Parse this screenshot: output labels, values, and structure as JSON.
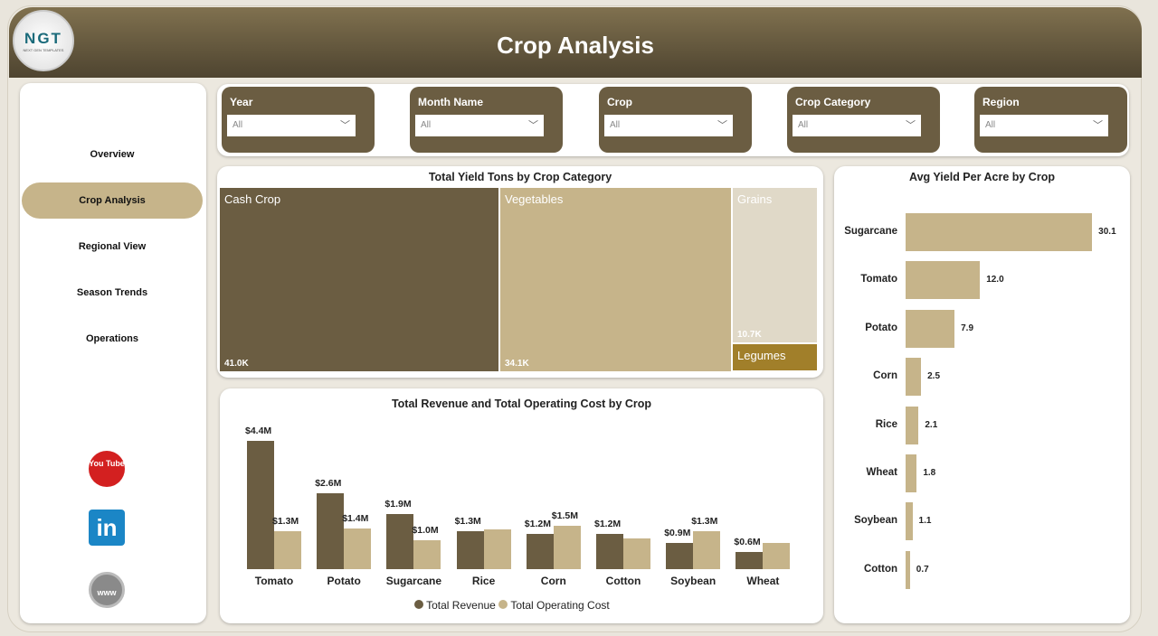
{
  "header": {
    "title": "Crop Analysis",
    "logo_text": "NGT",
    "logo_sub": "NEXT GEN TEMPLATES"
  },
  "sidebar": {
    "items": [
      {
        "label": "Overview"
      },
      {
        "label": "Crop Analysis",
        "active": true
      },
      {
        "label": "Regional View"
      },
      {
        "label": "Season Trends"
      },
      {
        "label": "Operations"
      }
    ],
    "social": [
      {
        "name": "youtube",
        "label": "You Tube"
      },
      {
        "name": "linkedin",
        "label": "in"
      },
      {
        "name": "website",
        "label": "www"
      }
    ]
  },
  "filters": [
    {
      "label": "Year",
      "value": "All"
    },
    {
      "label": "Month Name",
      "value": "All"
    },
    {
      "label": "Crop",
      "value": "All"
    },
    {
      "label": "Crop Category",
      "value": "All"
    },
    {
      "label": "Region",
      "value": "All"
    }
  ],
  "colors": {
    "dark": "#6b5d42",
    "tan": "#c6b48a",
    "light": "#e0d9c8",
    "legumes": "#a17f2a"
  },
  "chart_data": [
    {
      "type": "treemap",
      "title": "Total Yield Tons by Crop Category",
      "items": [
        {
          "name": "Cash Crop",
          "value": 41.0,
          "label": "41.0K"
        },
        {
          "name": "Vegetables",
          "value": 34.1,
          "label": "34.1K"
        },
        {
          "name": "Grains",
          "value": 10.7,
          "label": "10.7K"
        },
        {
          "name": "Legumes",
          "value": 2.0,
          "label": ""
        }
      ]
    },
    {
      "type": "bar",
      "title": "Total Revenue and Total Operating Cost by Crop",
      "categories": [
        "Tomato",
        "Potato",
        "Sugarcane",
        "Rice",
        "Corn",
        "Cotton",
        "Soybean",
        "Wheat"
      ],
      "series": [
        {
          "name": "Total Revenue",
          "values": [
            4.4,
            2.6,
            1.9,
            1.3,
            1.2,
            1.2,
            0.9,
            0.6
          ],
          "labels": [
            "$4.4M",
            "$2.6M",
            "$1.9M",
            "$1.3M",
            "$1.2M",
            "$1.2M",
            "$0.9M",
            "$0.6M"
          ]
        },
        {
          "name": "Total Operating Cost",
          "values": [
            1.3,
            1.4,
            1.0,
            1.35,
            1.5,
            1.05,
            1.3,
            0.9
          ],
          "labels": [
            "$1.3M",
            "$1.4M",
            "$1.0M",
            "",
            "$1.5M",
            "",
            "$1.3M",
            ""
          ]
        }
      ]
    },
    {
      "type": "bar",
      "orientation": "horizontal",
      "title": "Avg Yield Per Acre by Crop",
      "categories": [
        "Sugarcane",
        "Tomato",
        "Potato",
        "Corn",
        "Rice",
        "Wheat",
        "Soybean",
        "Cotton"
      ],
      "values": [
        30.1,
        12.0,
        7.9,
        2.5,
        2.1,
        1.8,
        1.1,
        0.7
      ],
      "labels": [
        "30.1",
        "12.0",
        "7.9",
        "2.5",
        "2.1",
        "1.8",
        "1.1",
        "0.7"
      ]
    }
  ]
}
